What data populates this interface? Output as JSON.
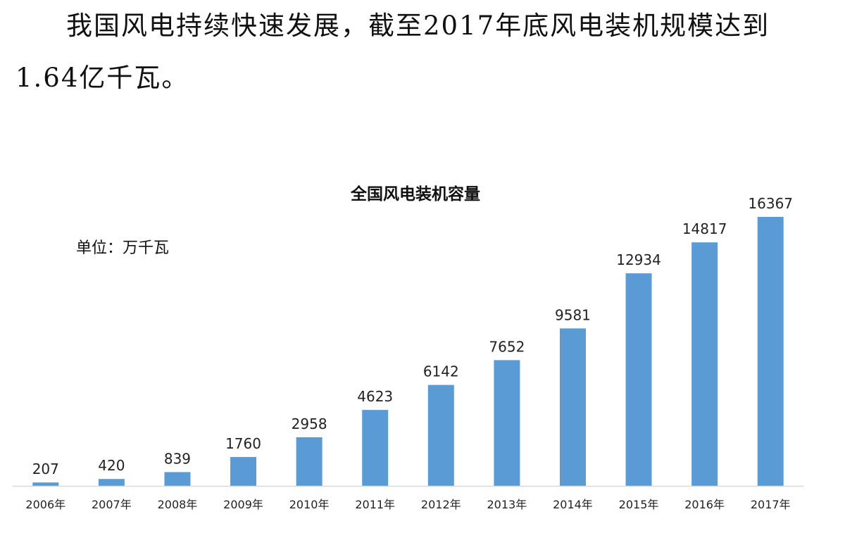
{
  "heading": "我国风电持续快速发展，截至2017年底风电装机规模达到1.64亿千瓦。",
  "chart_data": {
    "type": "bar",
    "title": "全国风电装机容量",
    "unit": "单位：万千瓦",
    "xlabel": "",
    "ylabel": "",
    "categories": [
      "2006年",
      "2007年",
      "2008年",
      "2009年",
      "2010年",
      "2011年",
      "2012年",
      "2013年",
      "2014年",
      "2015年",
      "2016年",
      "2017年"
    ],
    "values": [
      207,
      420,
      839,
      1760,
      2958,
      4623,
      6142,
      7652,
      9581,
      12934,
      14817,
      16367
    ],
    "ylim": [
      0,
      16367
    ],
    "bar_color": "#5b9bd5",
    "grid": false,
    "legend": "none"
  }
}
